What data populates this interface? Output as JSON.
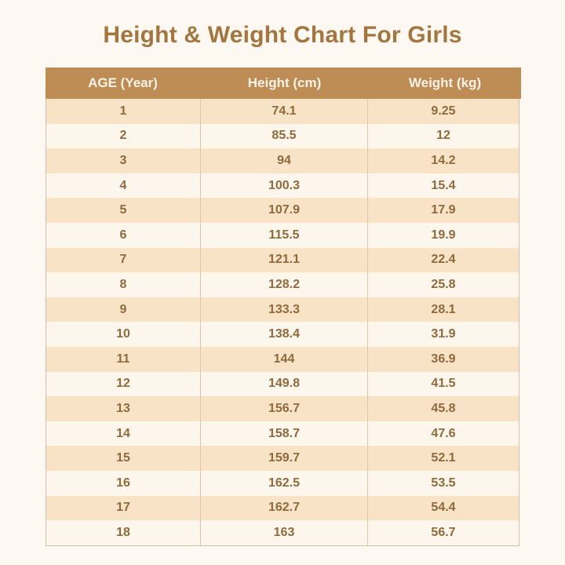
{
  "page": {
    "title": "Height & Weight Chart For Girls"
  },
  "colors": {
    "page_background": "#FDF8F1",
    "title_text": "#A2763E",
    "header_background": "#BE8C55",
    "header_text": "#FBF3E7",
    "row_stripe_peach": "#F8E3C6",
    "row_stripe_cream": "#FDF6EC",
    "cell_text": "#8E6A3C",
    "table_border": "#D3C0A4"
  },
  "table": {
    "columns": [
      "AGE (Year)",
      "Height (cm)",
      "Weight (kg)"
    ],
    "rows": [
      {
        "age": "1",
        "height": "74.1",
        "weight": "9.25"
      },
      {
        "age": "2",
        "height": "85.5",
        "weight": "12"
      },
      {
        "age": "3",
        "height": "94",
        "weight": "14.2"
      },
      {
        "age": "4",
        "height": "100.3",
        "weight": "15.4"
      },
      {
        "age": "5",
        "height": "107.9",
        "weight": "17.9"
      },
      {
        "age": "6",
        "height": "115.5",
        "weight": "19.9"
      },
      {
        "age": "7",
        "height": "121.1",
        "weight": "22.4"
      },
      {
        "age": "8",
        "height": "128.2",
        "weight": "25.8"
      },
      {
        "age": "9",
        "height": "133.3",
        "weight": "28.1"
      },
      {
        "age": "10",
        "height": "138.4",
        "weight": "31.9"
      },
      {
        "age": "11",
        "height": "144",
        "weight": "36.9"
      },
      {
        "age": "12",
        "height": "149.8",
        "weight": "41.5"
      },
      {
        "age": "13",
        "height": "156.7",
        "weight": "45.8"
      },
      {
        "age": "14",
        "height": "158.7",
        "weight": "47.6"
      },
      {
        "age": "15",
        "height": "159.7",
        "weight": "52.1"
      },
      {
        "age": "16",
        "height": "162.5",
        "weight": "53.5"
      },
      {
        "age": "17",
        "height": "162.7",
        "weight": "54.4"
      },
      {
        "age": "18",
        "height": "163",
        "weight": "56.7"
      }
    ]
  },
  "chart_data": {
    "type": "table",
    "title": "Height & Weight Chart For Girls",
    "columns": [
      "AGE (Year)",
      "Height (cm)",
      "Weight (kg)"
    ],
    "rows": [
      [
        1,
        74.1,
        9.25
      ],
      [
        2,
        85.5,
        12
      ],
      [
        3,
        94,
        14.2
      ],
      [
        4,
        100.3,
        15.4
      ],
      [
        5,
        107.9,
        17.9
      ],
      [
        6,
        115.5,
        19.9
      ],
      [
        7,
        121.1,
        22.4
      ],
      [
        8,
        128.2,
        25.8
      ],
      [
        9,
        133.3,
        28.1
      ],
      [
        10,
        138.4,
        31.9
      ],
      [
        11,
        144,
        36.9
      ],
      [
        12,
        149.8,
        41.5
      ],
      [
        13,
        156.7,
        45.8
      ],
      [
        14,
        158.7,
        47.6
      ],
      [
        15,
        159.7,
        52.1
      ],
      [
        16,
        162.5,
        53.5
      ],
      [
        17,
        162.7,
        54.4
      ],
      [
        18,
        163,
        56.7
      ]
    ],
    "layout": {
      "header_position": "top",
      "striped_rows": true,
      "cell_alignment": "center"
    }
  }
}
